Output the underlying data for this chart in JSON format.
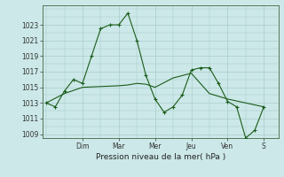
{
  "background_color": "#cce8e8",
  "grid_color": "#aacccc",
  "line_color": "#1a5c1a",
  "xlabel": "Pression niveau de la mer( hPa )",
  "ylim": [
    1008.5,
    1025.5
  ],
  "yticks": [
    1009,
    1011,
    1013,
    1015,
    1017,
    1019,
    1021,
    1023
  ],
  "day_labels": [
    "Dim",
    "Mar",
    "Mer",
    "Jeu",
    "Ven",
    "S"
  ],
  "day_positions": [
    2,
    4,
    6,
    8,
    10,
    12
  ],
  "xlim": [
    -0.2,
    12.8
  ],
  "jagged_x": [
    0,
    0.5,
    1,
    1.5,
    2,
    2.5,
    3,
    3.5,
    4,
    4.5,
    5,
    5.5,
    6,
    6.5,
    7,
    7.5,
    8,
    8.5,
    9,
    9.5,
    10,
    10.5,
    11,
    11.5,
    12
  ],
  "jagged_y": [
    1013,
    1012.5,
    1014.5,
    1016,
    1015.5,
    1019,
    1022.5,
    1023,
    1023,
    1024.5,
    1021,
    1016.5,
    1013.5,
    1011.8,
    1012.5,
    1014,
    1017.2,
    1017.5,
    1017.5,
    1015.5,
    1013.2,
    1012.5,
    1008.5,
    1009.5,
    1012.5
  ],
  "smooth_x": [
    0,
    1,
    2,
    3,
    4,
    4.5,
    5,
    5.5,
    6,
    7,
    8,
    9,
    10,
    11,
    12
  ],
  "smooth_y": [
    1013,
    1014.2,
    1015,
    1015.1,
    1015.2,
    1015.3,
    1015.5,
    1015.4,
    1015.0,
    1016.2,
    1016.8,
    1014.2,
    1013.5,
    1013.0,
    1012.5
  ]
}
